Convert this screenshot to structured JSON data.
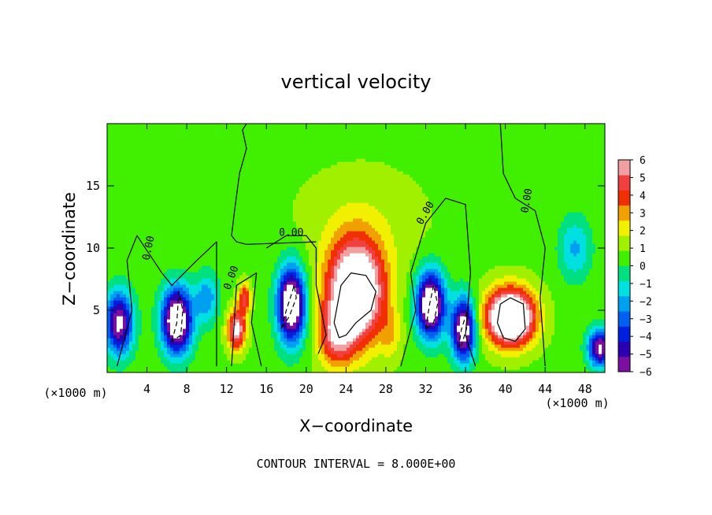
{
  "chart_data": {
    "type": "heatmap",
    "title": "vertical velocity",
    "xlabel": "X−coordinate",
    "ylabel": "Z−coordinate",
    "x_unit_left": "(×1000 m)",
    "x_unit_right": "(×1000 m)",
    "footer": "CONTOUR INTERVAL = 8.000E+00",
    "xlim": [
      0,
      50
    ],
    "ylim": [
      0,
      20
    ],
    "x_ticks": [
      4,
      8,
      12,
      16,
      20,
      24,
      28,
      32,
      36,
      40,
      44,
      48
    ],
    "x_tick_labels": [
      "4",
      "8",
      "12",
      "16",
      "20",
      "24",
      "28",
      "32",
      "36",
      "40",
      "44",
      "48"
    ],
    "y_ticks": [
      5,
      10,
      15
    ],
    "y_tick_labels": [
      "5",
      "10",
      "15"
    ],
    "colorbar": {
      "min": -6,
      "max": 6,
      "tick_labels": [
        "6",
        "5",
        "4",
        "3",
        "2",
        "1",
        "0",
        "−1",
        "−2",
        "−3",
        "−4",
        "−5",
        "−6"
      ],
      "colors": [
        "#7a0fa0",
        "#2a00b0",
        "#0020e0",
        "#0060f0",
        "#00a0f0",
        "#00e0e0",
        "#00e080",
        "#40f000",
        "#a0f000",
        "#f0f000",
        "#f0a000",
        "#f03000",
        "#f04040",
        "#f0a0a0"
      ]
    },
    "contour_labels": [
      "0.00",
      "0.00",
      "0.00",
      "0.00",
      "0.00",
      "0.00"
    ],
    "background_value": 0.6,
    "blobs": [
      {
        "x": 25.5,
        "z": 12,
        "sx": 6.5,
        "sz": 4.5,
        "a": 0.9
      },
      {
        "x": 25,
        "z": 6.5,
        "sx": 2.8,
        "sz": 4,
        "a": 9
      },
      {
        "x": 23,
        "z": 3,
        "sx": 1.8,
        "sz": 2.5,
        "a": 4
      },
      {
        "x": 40.5,
        "z": 4.5,
        "sx": 2.4,
        "sz": 2.2,
        "a": 10
      },
      {
        "x": 13,
        "z": 3.5,
        "sx": 0.9,
        "sz": 1.6,
        "a": 6
      },
      {
        "x": 13.8,
        "z": 6,
        "sx": 0.6,
        "sz": 1.2,
        "a": 4
      },
      {
        "x": 7,
        "z": 4.2,
        "sx": 1.5,
        "sz": 2.6,
        "a": -9
      },
      {
        "x": 18.5,
        "z": 5.5,
        "sx": 1.4,
        "sz": 3,
        "a": -9
      },
      {
        "x": 32.5,
        "z": 5.5,
        "sx": 1.4,
        "sz": 2.6,
        "a": -9
      },
      {
        "x": 35.8,
        "z": 3.5,
        "sx": 1.2,
        "sz": 2.5,
        "a": -8
      },
      {
        "x": 1.2,
        "z": 4,
        "sx": 1.4,
        "sz": 2.5,
        "a": -7
      },
      {
        "x": 49.5,
        "z": 2,
        "sx": 1.2,
        "sz": 1.5,
        "a": -7
      },
      {
        "x": 47,
        "z": 10,
        "sx": 1.6,
        "sz": 2.5,
        "a": -2.5
      },
      {
        "x": 10,
        "z": 6,
        "sx": 1.2,
        "sz": 2,
        "a": -3
      },
      {
        "x": 28.5,
        "z": 3,
        "sx": 1,
        "sz": 2,
        "a": 1.5
      }
    ],
    "zero_contours": [
      [
        [
          1,
          0.5
        ],
        [
          2.5,
          5
        ],
        [
          2,
          9
        ],
        [
          3,
          11
        ],
        [
          5.5,
          8
        ],
        [
          6.5,
          7
        ],
        [
          9,
          9
        ],
        [
          11,
          10.5
        ],
        [
          11,
          0.5
        ]
      ],
      [
        [
          12.5,
          0.5
        ],
        [
          13,
          7
        ],
        [
          15,
          8
        ],
        [
          14.5,
          4
        ],
        [
          15.5,
          0.5
        ]
      ],
      [
        [
          12.8,
          13
        ],
        [
          13.3,
          16
        ],
        [
          14,
          18
        ],
        [
          13.6,
          19.5
        ],
        [
          14,
          20
        ]
      ],
      [
        [
          16,
          10
        ],
        [
          18,
          11
        ],
        [
          20,
          11
        ],
        [
          21,
          10
        ],
        [
          21,
          7
        ],
        [
          22,
          3
        ],
        [
          21.2,
          1.5
        ]
      ],
      [
        [
          21,
          10.5
        ],
        [
          14,
          10.3
        ],
        [
          13,
          10.5
        ],
        [
          12.5,
          11
        ],
        [
          12.8,
          13
        ]
      ],
      [
        [
          29.5,
          0.5
        ],
        [
          31,
          5
        ],
        [
          30.5,
          8
        ],
        [
          32,
          12
        ],
        [
          34,
          14
        ],
        [
          36,
          13.5
        ],
        [
          36.5,
          8
        ],
        [
          36,
          3
        ],
        [
          37,
          0.5
        ]
      ],
      [
        [
          39.5,
          20
        ],
        [
          39.8,
          16
        ],
        [
          41,
          14
        ],
        [
          43,
          13
        ],
        [
          44,
          10
        ],
        [
          43.5,
          6
        ],
        [
          44,
          0.5
        ]
      ]
    ],
    "dashed_contours": [
      [
        [
          6.5,
          2.5
        ],
        [
          7,
          4
        ],
        [
          7.2,
          6.5
        ],
        [
          7.6,
          5
        ],
        [
          7.4,
          3
        ],
        [
          6.5,
          2.5
        ]
      ],
      [
        [
          17.5,
          3.5
        ],
        [
          18,
          5
        ],
        [
          18.8,
          7
        ],
        [
          19,
          6
        ],
        [
          18.3,
          4.5
        ],
        [
          17.5,
          3.5
        ]
      ],
      [
        [
          32,
          3.5
        ],
        [
          32.4,
          5.5
        ],
        [
          32.8,
          7
        ],
        [
          33.2,
          5.5
        ],
        [
          32.8,
          4
        ],
        [
          32,
          3.5
        ]
      ],
      [
        [
          35.3,
          2
        ],
        [
          35.6,
          3.5
        ],
        [
          36.2,
          5
        ],
        [
          36.1,
          3.5
        ],
        [
          35.6,
          2.2
        ],
        [
          35.3,
          2
        ]
      ]
    ],
    "positive_contours": [
      [
        [
          22.8,
          4
        ],
        [
          23.5,
          7
        ],
        [
          24.5,
          8
        ],
        [
          26,
          7.8
        ],
        [
          27,
          6.5
        ],
        [
          26.5,
          5
        ],
        [
          25,
          4
        ],
        [
          24,
          3
        ],
        [
          23.3,
          2.8
        ],
        [
          22.8,
          4
        ]
      ],
      [
        [
          39.2,
          4
        ],
        [
          39.5,
          5.5
        ],
        [
          40.5,
          6
        ],
        [
          41.8,
          5.5
        ],
        [
          42,
          3.5
        ],
        [
          41,
          2.5
        ],
        [
          39.8,
          2.8
        ],
        [
          39.2,
          4
        ]
      ]
    ]
  }
}
